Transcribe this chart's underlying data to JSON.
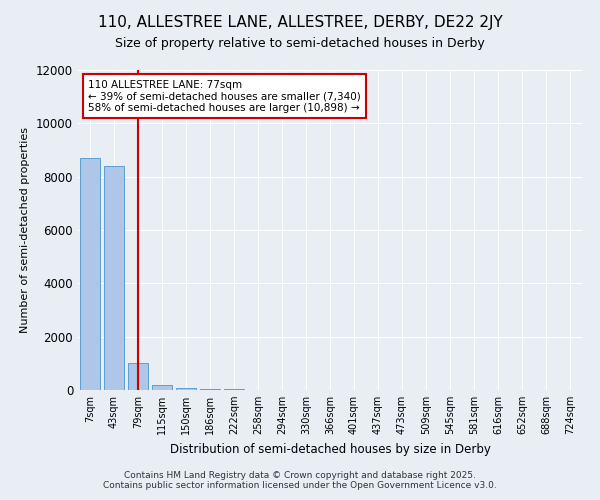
{
  "title": "110, ALLESTREE LANE, ALLESTREE, DERBY, DE22 2JY",
  "subtitle": "Size of property relative to semi-detached houses in Derby",
  "xlabel": "Distribution of semi-detached houses by size in Derby",
  "ylabel": "Number of semi-detached properties",
  "bin_labels": [
    "7sqm",
    "43sqm",
    "79sqm",
    "115sqm",
    "150sqm",
    "186sqm",
    "222sqm",
    "258sqm",
    "294sqm",
    "330sqm",
    "366sqm",
    "401sqm",
    "437sqm",
    "473sqm",
    "509sqm",
    "545sqm",
    "581sqm",
    "616sqm",
    "652sqm",
    "688sqm",
    "724sqm"
  ],
  "bar_heights": [
    8700,
    8400,
    1000,
    200,
    80,
    40,
    20,
    10,
    8,
    5,
    4,
    3,
    2,
    2,
    1,
    1,
    1,
    0,
    0,
    0,
    0
  ],
  "bar_color": "#aec6e8",
  "bar_edge_color": "#5a9fd4",
  "property_bin_index": 2,
  "property_label": "110 ALLESTREE LANE: 77sqm",
  "pct_smaller": 39,
  "n_smaller": 7340,
  "pct_larger": 58,
  "n_larger": 10898,
  "vline_color": "#cc0000",
  "annotation_box_color": "#cc0000",
  "ylim": [
    0,
    12000
  ],
  "yticks": [
    0,
    2000,
    4000,
    6000,
    8000,
    10000,
    12000
  ],
  "footer_line1": "Contains HM Land Registry data © Crown copyright and database right 2025.",
  "footer_line2": "Contains public sector information licensed under the Open Government Licence v3.0.",
  "bg_color": "#e8eef4"
}
